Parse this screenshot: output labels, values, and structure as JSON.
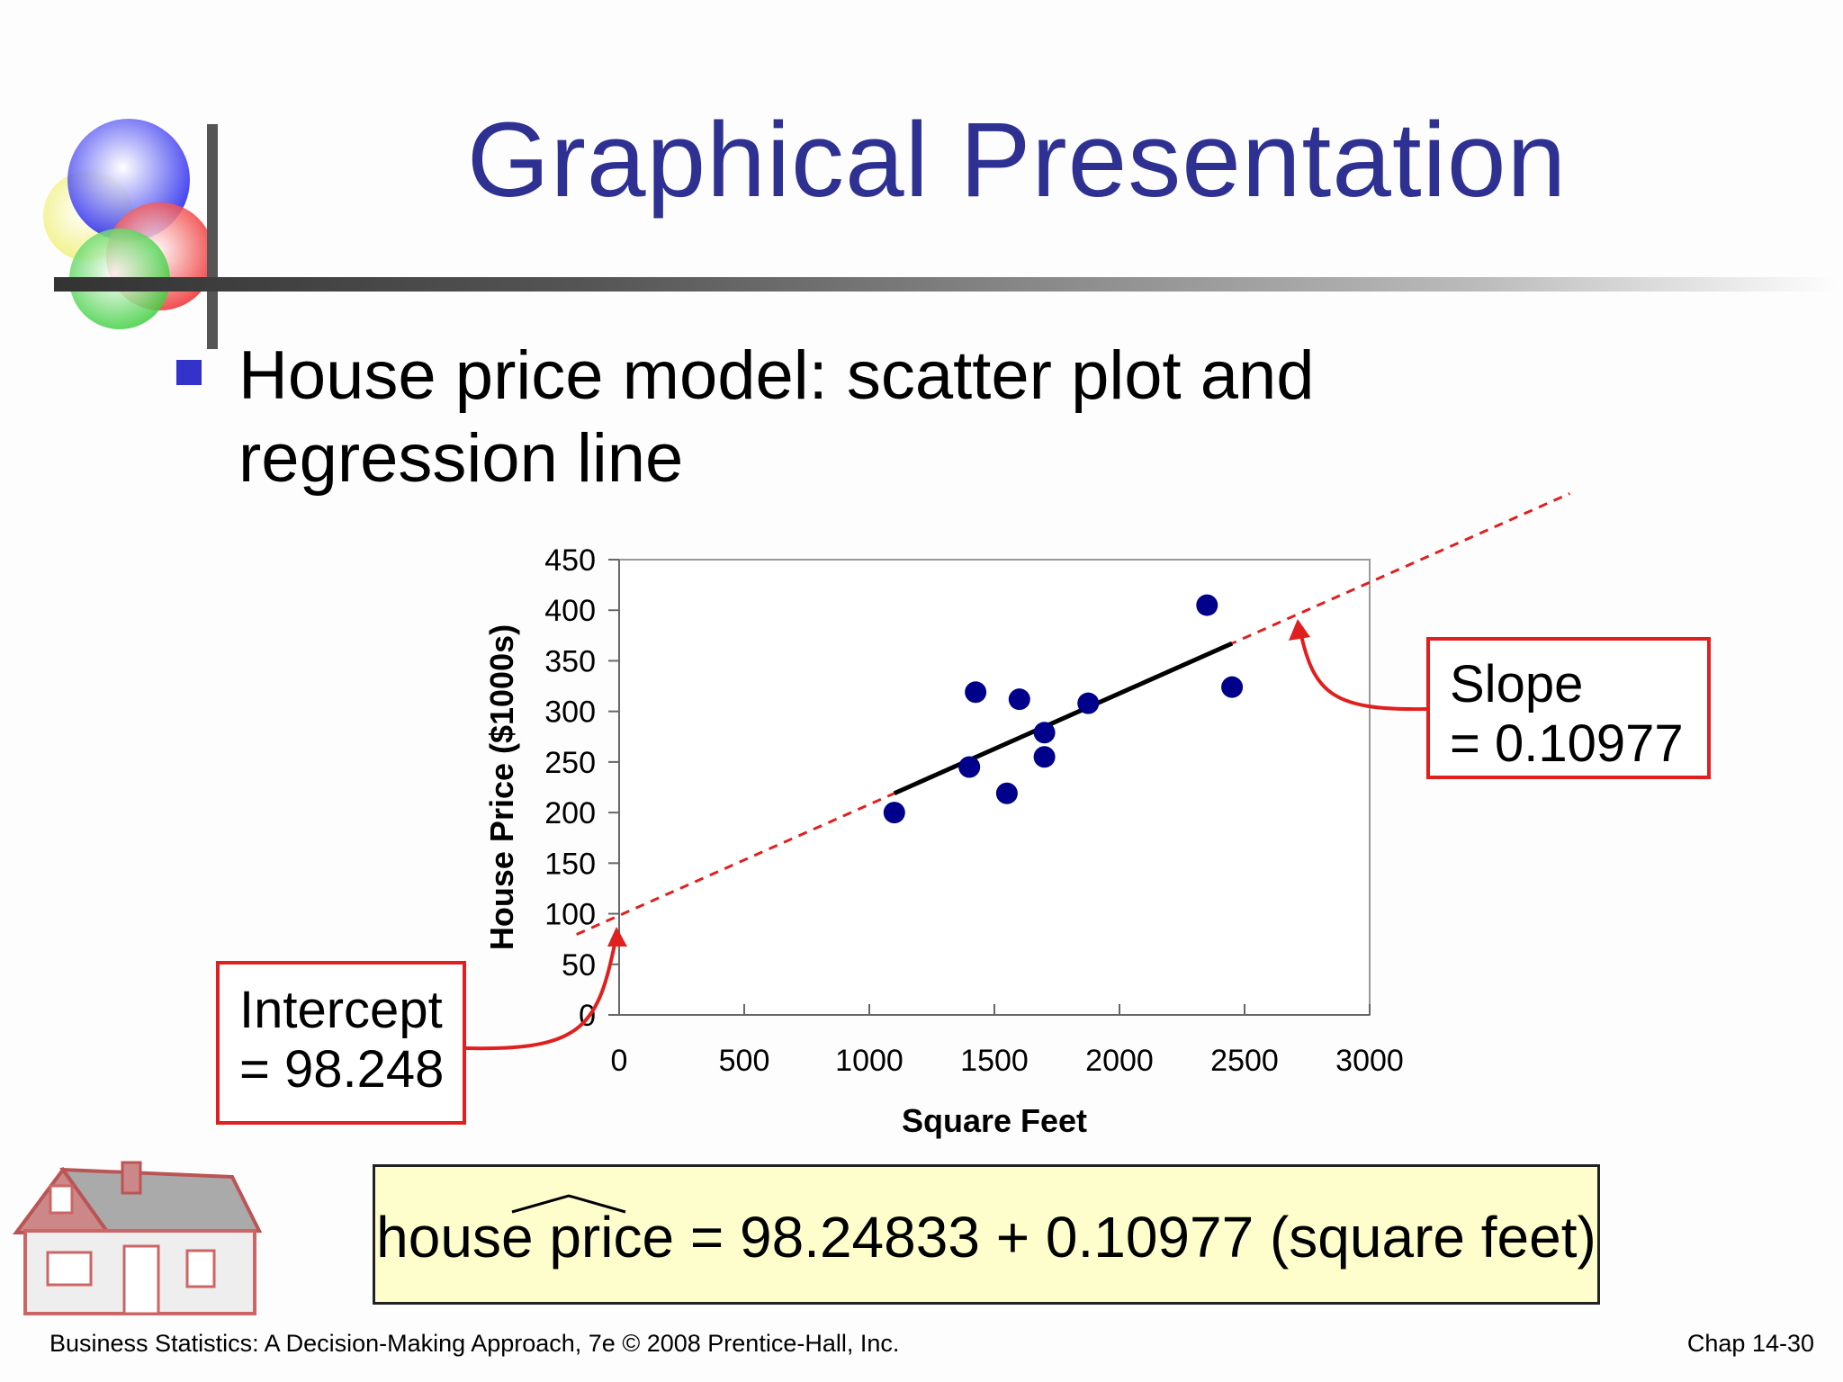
{
  "title": "Graphical Presentation",
  "bullet": {
    "line1": "House price model:  scatter plot and",
    "line2": "regression line"
  },
  "callouts": {
    "intercept": {
      "line1": "Intercept",
      "line2": "= 98.248"
    },
    "slope": {
      "line1": "Slope",
      "line2": "= 0.10977"
    }
  },
  "formula": {
    "lhs": "house price",
    "op": "=",
    "rhs": "98.24833 + 0.10977 (square feet)"
  },
  "footer": {
    "left": "Business Statistics: A Decision-Making Approach, 7e © 2008 Prentice-Hall, Inc.",
    "right": "Chap 14-30"
  },
  "colors": {
    "title": "#2e3192",
    "points": "#00008b",
    "fit_line": "#000000",
    "extension_line": "#e0201f",
    "callout_border": "#e0201f",
    "formula_bg": "#fefecd"
  },
  "chart_data": {
    "type": "scatter",
    "title": "",
    "xlabel": "Square Feet",
    "ylabel": "House Price ($1000s)",
    "xlim": [
      0,
      3000
    ],
    "ylim": [
      0,
      450
    ],
    "x_ticks": [
      0,
      500,
      1000,
      1500,
      2000,
      2500,
      3000
    ],
    "y_ticks": [
      0,
      50,
      100,
      150,
      200,
      250,
      300,
      350,
      400,
      450
    ],
    "grid": false,
    "legend": "none",
    "series": [
      {
        "points": [
          {
            "x": 1100,
            "y": 200
          },
          {
            "x": 1400,
            "y": 245
          },
          {
            "x": 1425,
            "y": 319
          },
          {
            "x": 1550,
            "y": 219
          },
          {
            "x": 1600,
            "y": 312
          },
          {
            "x": 1700,
            "y": 279
          },
          {
            "x": 1700,
            "y": 255
          },
          {
            "x": 1875,
            "y": 308
          },
          {
            "x": 2350,
            "y": 405
          },
          {
            "x": 2450,
            "y": 324
          }
        ]
      }
    ],
    "regression": {
      "intercept": 98.24833,
      "slope": 0.10977,
      "fit_x_range": [
        1100,
        2450
      ]
    }
  }
}
